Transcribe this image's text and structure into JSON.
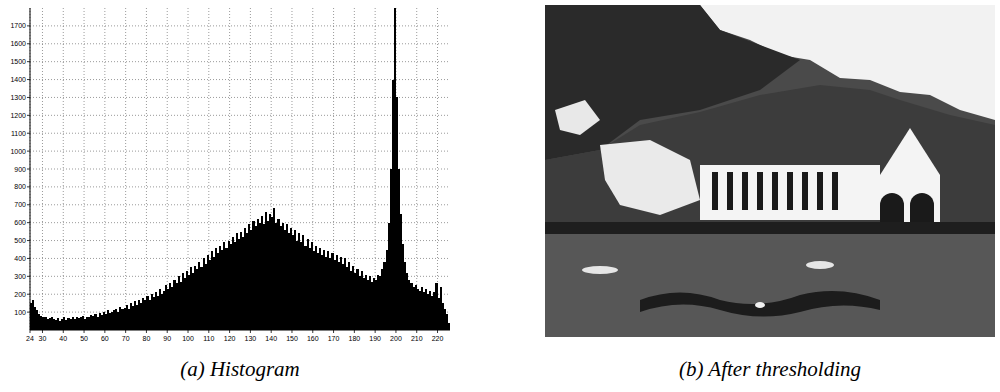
{
  "chart_data": {
    "type": "histogram",
    "title": "(a) Histogram",
    "color": "#000000",
    "grid": true,
    "bins": [
      24,
      25,
      26,
      27,
      28,
      29,
      30,
      31,
      32,
      33,
      34,
      35,
      36,
      37,
      38,
      39,
      40,
      41,
      42,
      43,
      44,
      45,
      46,
      47,
      48,
      49,
      50,
      51,
      52,
      53,
      54,
      55,
      56,
      57,
      58,
      59,
      60,
      61,
      62,
      63,
      64,
      65,
      66,
      67,
      68,
      69,
      70,
      71,
      72,
      73,
      74,
      75,
      76,
      77,
      78,
      79,
      80,
      81,
      82,
      83,
      84,
      85,
      86,
      87,
      88,
      89,
      90,
      91,
      92,
      93,
      94,
      95,
      96,
      97,
      98,
      99,
      100,
      101,
      102,
      103,
      104,
      105,
      106,
      107,
      108,
      109,
      110,
      111,
      112,
      113,
      114,
      115,
      116,
      117,
      118,
      119,
      120,
      121,
      122,
      123,
      124,
      125,
      126,
      127,
      128,
      129,
      130,
      131,
      132,
      133,
      134,
      135,
      136,
      137,
      138,
      139,
      140,
      141,
      142,
      143,
      144,
      145,
      146,
      147,
      148,
      149,
      150,
      151,
      152,
      153,
      154,
      155,
      156,
      157,
      158,
      159,
      160,
      161,
      162,
      163,
      164,
      165,
      166,
      167,
      168,
      169,
      170,
      171,
      172,
      173,
      174,
      175,
      176,
      177,
      178,
      179,
      180,
      181,
      182,
      183,
      184,
      185,
      186,
      187,
      188,
      189,
      190,
      191,
      192,
      193,
      194,
      195,
      196,
      197,
      198,
      199,
      200,
      201,
      202,
      203,
      204,
      205,
      206,
      207,
      208,
      209,
      210,
      211,
      212,
      213,
      214,
      215,
      216,
      217,
      218,
      219,
      220,
      221,
      222,
      223,
      224,
      225,
      226
    ],
    "values": [
      150,
      170,
      130,
      110,
      90,
      80,
      70,
      75,
      60,
      65,
      70,
      60,
      55,
      65,
      50,
      60,
      70,
      55,
      65,
      60,
      70,
      60,
      75,
      65,
      70,
      80,
      60,
      75,
      70,
      85,
      80,
      90,
      75,
      95,
      85,
      100,
      90,
      110,
      95,
      100,
      110,
      120,
      100,
      130,
      115,
      125,
      140,
      120,
      150,
      135,
      160,
      140,
      170,
      150,
      180,
      165,
      190,
      170,
      200,
      185,
      210,
      190,
      230,
      200,
      220,
      250,
      230,
      260,
      240,
      280,
      260,
      300,
      270,
      320,
      290,
      330,
      310,
      350,
      320,
      360,
      340,
      380,
      350,
      400,
      370,
      420,
      390,
      440,
      410,
      460,
      430,
      470,
      450,
      490,
      460,
      500,
      480,
      520,
      490,
      540,
      510,
      550,
      520,
      570,
      540,
      590,
      560,
      610,
      580,
      620,
      600,
      640,
      590,
      660,
      610,
      650,
      630,
      680,
      600,
      620,
      580,
      600,
      560,
      590,
      540,
      570,
      530,
      560,
      500,
      540,
      490,
      530,
      470,
      510,
      460,
      490,
      440,
      470,
      430,
      460,
      420,
      450,
      410,
      440,
      400,
      430,
      390,
      420,
      380,
      410,
      370,
      400,
      350,
      380,
      330,
      360,
      320,
      340,
      300,
      330,
      290,
      310,
      280,
      300,
      270,
      290,
      280,
      310,
      300,
      340,
      380,
      450,
      600,
      900,
      1400,
      1800,
      1300,
      900,
      650,
      480,
      380,
      320,
      280,
      260,
      240,
      250,
      230,
      220,
      240,
      210,
      230,
      200,
      220,
      190,
      210,
      260,
      180,
      240,
      150,
      120,
      90,
      40
    ],
    "xlim": [
      24,
      226
    ],
    "xticks": [
      24,
      30,
      40,
      50,
      60,
      70,
      80,
      90,
      100,
      110,
      120,
      130,
      140,
      150,
      160,
      170,
      180,
      190,
      200,
      210,
      220
    ],
    "ylim": [
      0,
      1800
    ],
    "yticks": [
      100,
      200,
      300,
      400,
      500,
      600,
      700,
      800,
      900,
      1000,
      1100,
      1200,
      1300,
      1400,
      1500,
      1600,
      1700
    ]
  },
  "image": {
    "caption": "(b) After thresholding"
  }
}
